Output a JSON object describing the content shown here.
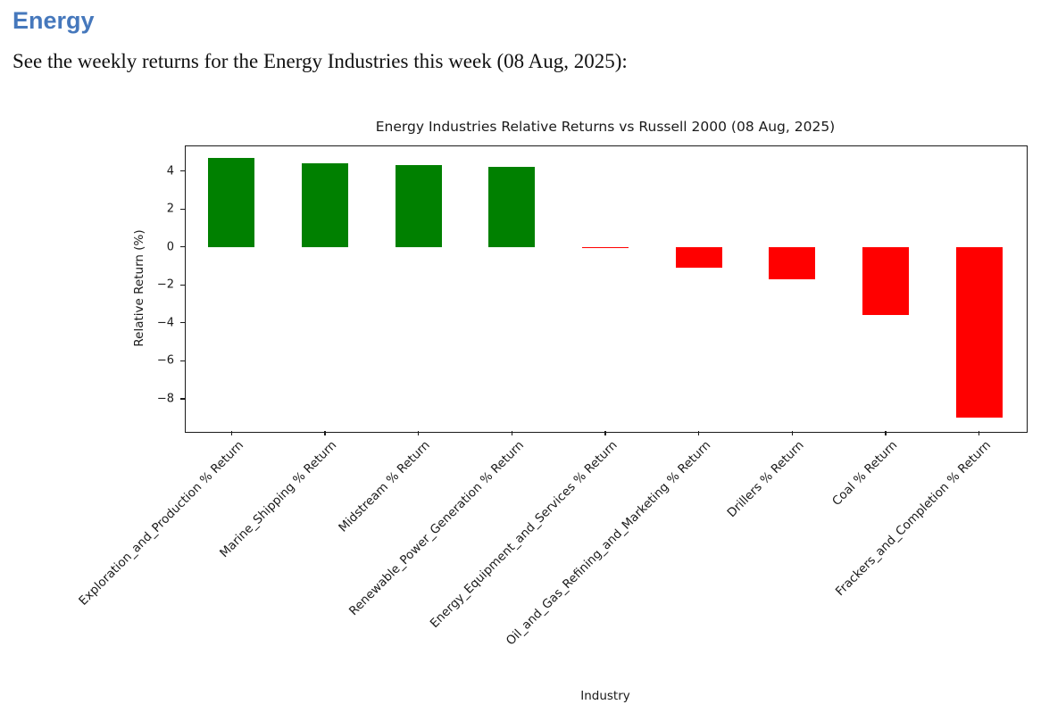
{
  "page": {
    "heading": "Energy",
    "heading_color": "#4678BC",
    "subtitle": "See the weekly returns for the Energy Industries this week (08 Aug, 2025):"
  },
  "chart_data": {
    "type": "bar",
    "title": "Energy Industries Relative Returns vs Russell 2000 (08 Aug, 2025)",
    "xlabel": "Industry",
    "ylabel": "Relative Return (%)",
    "categories": [
      "Exploration_and_Production % Return",
      "Marine_Shipping % Return",
      "Midstream % Return",
      "Renewable_Power_Generation % Return",
      "Energy_Equipment_and_Services % Return",
      "Oil_and_Gas_Refining_and_Marketing % Return",
      "Drillers % Return",
      "Coal % Return",
      "Frackers_and_Completion % Return"
    ],
    "values": [
      4.7,
      4.4,
      4.3,
      4.2,
      -0.05,
      -1.1,
      -1.7,
      -3.6,
      -9.0
    ],
    "positive_color": "#008000",
    "negative_color": "#FF0000",
    "yticks": [
      4,
      2,
      0,
      -2,
      -4,
      -6,
      -8
    ],
    "ylim": [
      -9.7,
      5.35
    ],
    "bar_width_fraction": 0.5,
    "grid": false,
    "legend": "none"
  }
}
